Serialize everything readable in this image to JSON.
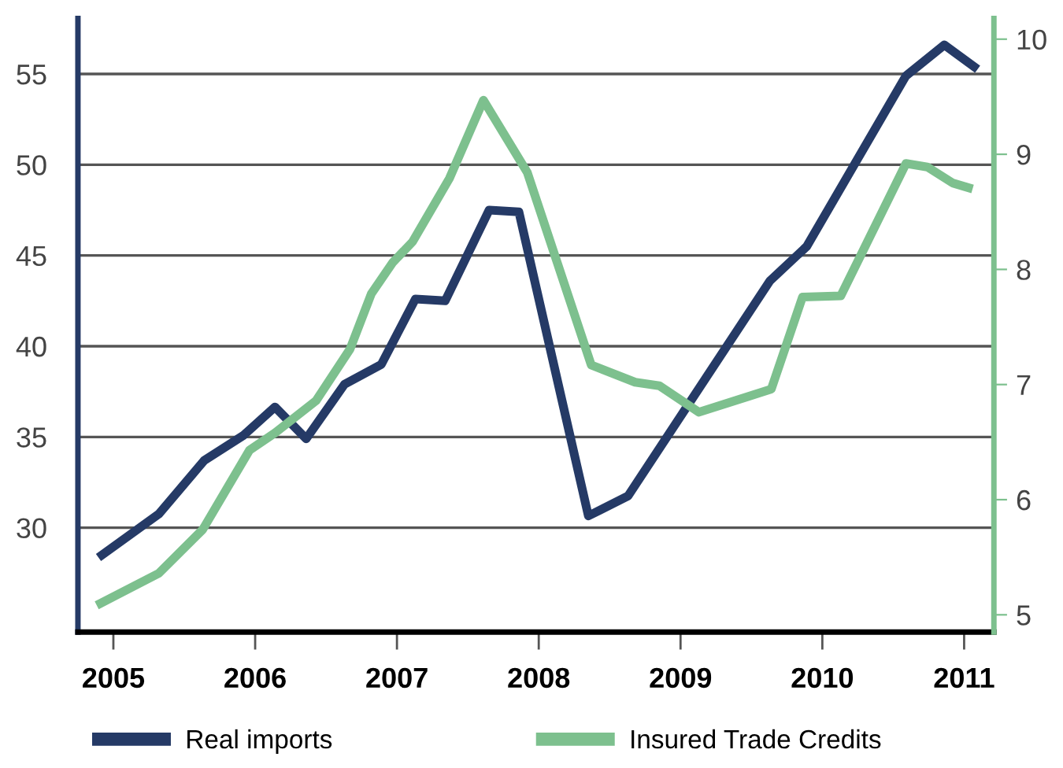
{
  "chart_data": {
    "type": "line",
    "xlim": [
      2004.75,
      2011.21
    ],
    "xticks": [
      2005,
      2006,
      2007,
      2008,
      2009,
      2010,
      2011
    ],
    "ylim": [
      24.25,
      58.06
    ],
    "yticks": [
      30,
      35,
      40,
      45,
      50,
      55
    ],
    "y2lim": [
      4.85,
      10.18
    ],
    "y2ticks": [
      5,
      6,
      7,
      8,
      9,
      10
    ],
    "grid": "y",
    "legend": "bottom",
    "marker": "none",
    "line_style": "solid",
    "series": [
      {
        "name": "Real imports",
        "color": "#253a66",
        "x": [
          2004.92,
          2005.32,
          2005.64,
          2005.92,
          2006.14,
          2006.36,
          2006.63,
          2006.89,
          2007.13,
          2007.34,
          2007.65,
          2007.86,
          2008.35,
          2008.63,
          2009.63,
          2009.89,
          2010.59,
          2010.86,
          2011.07
        ],
        "values": [
          28.5,
          30.75,
          33.7,
          35.1,
          36.65,
          34.9,
          37.9,
          39.0,
          42.6,
          42.5,
          47.5,
          47.4,
          30.65,
          31.75,
          43.6,
          45.5,
          54.9,
          56.6,
          55.4
        ]
      },
      {
        "name": "Insured Trade Credits",
        "color": "#7dc08e",
        "axis": "y2",
        "x": [
          2004.91,
          2005.32,
          2005.63,
          2005.96,
          2006.14,
          2006.43,
          2006.67,
          2006.82,
          2006.97,
          2007.11,
          2007.37,
          2007.61,
          2007.92,
          2008.13,
          2008.37,
          2008.68,
          2008.85,
          2009.13,
          2009.64,
          2009.86,
          2010.13,
          2010.59,
          2010.74,
          2010.92,
          2011.03
        ],
        "values": [
          5.1,
          5.36,
          5.74,
          6.43,
          6.58,
          6.86,
          7.31,
          7.79,
          8.06,
          8.24,
          8.79,
          9.47,
          8.84,
          8.06,
          7.17,
          7.02,
          6.99,
          6.76,
          6.96,
          7.76,
          7.77,
          8.92,
          8.89,
          8.75,
          8.71
        ]
      }
    ]
  }
}
